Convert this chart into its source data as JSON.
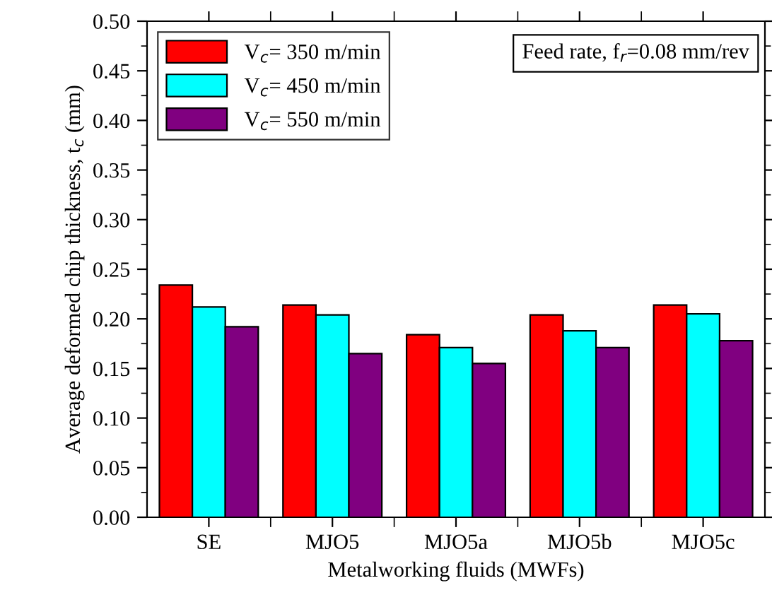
{
  "chart_data": {
    "type": "bar",
    "xlabel": "Metalworking fluids (MWFs)",
    "ylabel": "Average deformed chip thickness, t$_{c}$ (mm)",
    "categories": [
      "SE",
      "MJO5",
      "MJO5a",
      "MJO5b",
      "MJO5c"
    ],
    "series": [
      {
        "name": "V$_{c}$= 350 m/min",
        "color": "#ff0000",
        "values": [
          0.234,
          0.214,
          0.184,
          0.204,
          0.214
        ]
      },
      {
        "name": "V$_{c}$= 450 m/min",
        "color": "#00ffff",
        "values": [
          0.212,
          0.204,
          0.171,
          0.188,
          0.205
        ]
      },
      {
        "name": "V$_{c}$= 550 m/min",
        "color": "#800080",
        "values": [
          0.192,
          0.165,
          0.155,
          0.171,
          0.178
        ]
      }
    ],
    "ylim": [
      0,
      0.5
    ],
    "yticks": [
      {
        "value": 0,
        "label": "0.00"
      },
      {
        "value": 0.05,
        "label": "0.05"
      },
      {
        "value": 0.1,
        "label": "0.10"
      },
      {
        "value": 0.15,
        "label": "0.15"
      },
      {
        "value": 0.2,
        "label": "0.20"
      },
      {
        "value": 0.25,
        "label": "0.25"
      },
      {
        "value": 0.3,
        "label": "0.30"
      },
      {
        "value": 0.35,
        "label": "0.35"
      },
      {
        "value": 0.4,
        "label": "0.40"
      },
      {
        "value": 0.45,
        "label": "0.45"
      },
      {
        "value": 0.5,
        "label": "0.50"
      }
    ],
    "annotations": [
      "Feed rate, f$_{r}$=0.08 mm/rev"
    ],
    "legend": "top left",
    "grid": false
  }
}
